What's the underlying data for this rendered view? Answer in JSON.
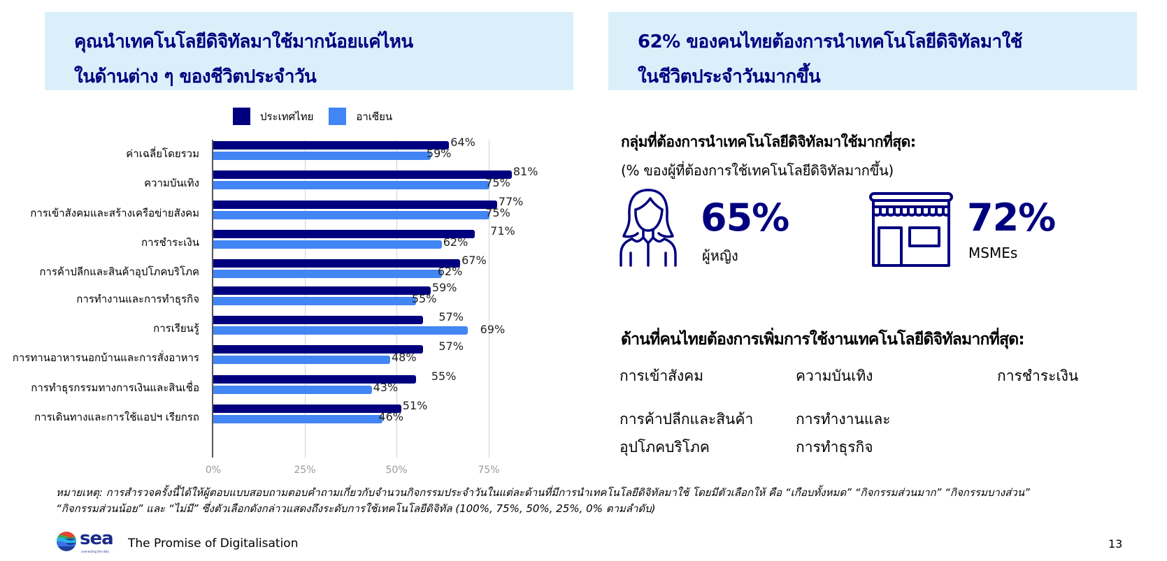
{
  "left_panel": {
    "title_line1": "คุณนำเทคโนโลยีดิจิทัลมาใช้มากน้อยแค่ไหน",
    "title_line2": "ในด้านต่าง ๆ ของชีวิตประจำวัน"
  },
  "right_panel": {
    "title_line1": "62% ของคนไทยต้องการนำเทคโนโลยีดิจิทัลมาใช้",
    "title_line2": "ในชีวิตประจำวันมากขึ้น",
    "groups_heading": "กลุ่มที่ต้องการนำเทคโนโลยีดิจิทัลมาใช้มากที่สุด:",
    "groups_note": "(% ของผู้ที่ต้องการใช้เทคโนโลยีดิจิทัลมากขึ้น)",
    "stats": [
      {
        "icon": "woman-icon",
        "value": "65%",
        "label": "ผู้หญิง"
      },
      {
        "icon": "storefront-icon",
        "value": "72%",
        "label": "MSMEs"
      }
    ],
    "areas_heading": "ด้านที่คนไทยต้องการเพิ่มการใช้งานเทคโนโลยีดิจิทัลมากที่สุด:",
    "areas": [
      "การเข้าสังคม",
      "ความบันเทิง",
      "การชำระเงิน",
      "การค้าปลีกและสินค้า\nอุปโภคบริโภค",
      "การทำงานและ\nการทำธุรกิจ"
    ]
  },
  "footnote": {
    "line1": "หมายเหตุ: การสำรวจครั้งนี้ได้ให้ผู้ตอบแบบสอบถามตอบคำถามเกี่ยวกับจำนวนกิจกรรมประจำวันในแต่ละด้านที่มีการนำเทคโนโลยีดิจิทัลมาใช้ โดยมีตัวเลือกให้ คือ “เกือบทั้งหมด” “กิจกรรมส่วนมาก” “กิจกรรมบางส่วน”",
    "line2": "“กิจกรรมส่วนน้อย” และ “ไม่มี” ซึ่งตัวเลือกดังกล่าวแสดงถึงระดับการใช้เทคโนโลยีดิจิทัล (100%, 75%, 50%, 25%, 0% ตามลำดับ)"
  },
  "footer": {
    "brand": "sea",
    "tagline": "connecting the dots",
    "title": "The Promise of Digitalisation",
    "page_number": "13"
  },
  "colors": {
    "thailand": "#00007f",
    "asean": "#4285f4",
    "title_bg": "#dbeffa",
    "title_text": "#00007f"
  },
  "chart_data": {
    "type": "bar",
    "orientation": "horizontal",
    "title": "คุณนำเทคโนโลยีดิจิทัลมาใช้มากน้อยแค่ไหนในด้านต่าง ๆ ของชีวิตประจำวัน",
    "xlabel": "",
    "ylabel": "",
    "xlim": [
      0,
      100
    ],
    "x_ticks": [
      "0%",
      "25%",
      "50%",
      "75%"
    ],
    "grid": true,
    "legend_position": "top",
    "categories": [
      "ค่าเฉลี่ยโดยรวม",
      "ความบันเทิง",
      "การเข้าสังคมและสร้างเครือข่ายสังคม",
      "การชำระเงิน",
      "การค้าปลีกและสินค้าอุปโภคบริโภค",
      "การทำงานและการทำธุรกิจ",
      "การเรียนรู้",
      "การทานอาหารนอกบ้านและการสั่งอาหาร",
      "การทำธุรกรรมทางการเงินและสินเชื่อ",
      "การเดินทางและการใช้แอปฯ เรียกรถ"
    ],
    "series": [
      {
        "name": "ประเทศไทย",
        "color": "#00007f",
        "values": [
          64,
          81,
          77,
          71,
          67,
          59,
          57,
          57,
          55,
          51
        ]
      },
      {
        "name": "อาเซียน",
        "color": "#4285f4",
        "values": [
          59,
          75,
          75,
          62,
          62,
          55,
          69,
          48,
          43,
          46
        ]
      }
    ]
  }
}
